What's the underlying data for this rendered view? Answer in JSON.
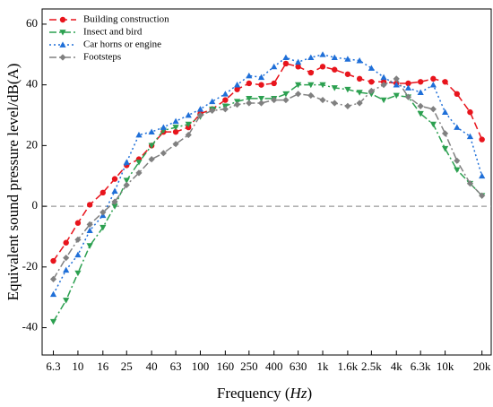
{
  "chart_data": {
    "type": "line",
    "xscale": "log",
    "grid": false,
    "legend": "upper left",
    "xlabel_parts": [
      "Frequency  (",
      "Hz",
      ")"
    ],
    "ylabel": "Equivalent sound pressure level/dB(A)",
    "hline": 0,
    "x": [
      6.3,
      8,
      10,
      12.5,
      16,
      20,
      25,
      31.5,
      40,
      50,
      63,
      80,
      100,
      125,
      160,
      200,
      250,
      315,
      400,
      500,
      630,
      800,
      1000,
      1250,
      1600,
      2000,
      2500,
      3150,
      4000,
      5000,
      6300,
      8000,
      10000,
      12500,
      16000,
      20000
    ],
    "xlim": [
      5.1,
      23800
    ],
    "xticks": [
      6.3,
      10,
      16,
      25,
      40,
      63,
      100,
      160,
      250,
      400,
      630,
      {
        "value": 1000,
        "label": "1k"
      },
      {
        "value": 1600,
        "label": "1.6k"
      },
      {
        "value": 2500,
        "label": "2.5k"
      },
      {
        "value": 4000,
        "label": "4k"
      },
      {
        "value": 6300,
        "label": "6.3k"
      },
      {
        "value": 10000,
        "label": "10k"
      },
      {
        "value": 20000,
        "label": "20k"
      }
    ],
    "ylim": [
      -49,
      65
    ],
    "yticks": [
      -40,
      -20,
      0,
      20,
      40,
      60
    ],
    "series": [
      {
        "name": "Building construction",
        "color": "#e8141c",
        "marker": "circle",
        "linestyle": "dashed",
        "values": [
          -18,
          -12,
          -5.5,
          0.5,
          4.5,
          9,
          13.5,
          15.5,
          20,
          24.5,
          24.5,
          26,
          30.5,
          32,
          35,
          38.5,
          40.5,
          40,
          40.5,
          47,
          46,
          44,
          46,
          45,
          43.5,
          42,
          41,
          41,
          40.5,
          40.5,
          41,
          42,
          41,
          37,
          31,
          22
        ]
      },
      {
        "name": "Insect and bird",
        "color": "#2ca050",
        "marker": "triangle-down",
        "linestyle": "dashdot",
        "values": [
          -38,
          -31,
          -22,
          -13,
          -7,
          0,
          8.5,
          14.5,
          20,
          25,
          26,
          27,
          29.5,
          32,
          33,
          34.5,
          35.5,
          35.5,
          35.5,
          37,
          40,
          40,
          40,
          39,
          38.5,
          37.5,
          37,
          35,
          36.5,
          36,
          30.5,
          27,
          19,
          12,
          7.5,
          3.5
        ]
      },
      {
        "name": "Car horns or engine",
        "color": "#1f6fd8",
        "marker": "triangle-up",
        "linestyle": "dotted",
        "values": [
          -29,
          -21,
          -16,
          -8,
          -3,
          5,
          14.5,
          23.5,
          24.5,
          26,
          28,
          30,
          32,
          34.5,
          37,
          40,
          43,
          42.5,
          46,
          49,
          47.5,
          49,
          50,
          49,
          48.5,
          48,
          45.5,
          42.5,
          40,
          39,
          37.5,
          40,
          31,
          26,
          23,
          10
        ]
      },
      {
        "name": "Footsteps",
        "color": "#808080",
        "marker": "diamond",
        "linestyle": "dashdot",
        "values": [
          -24,
          -17,
          -11,
          -6,
          -2,
          1.5,
          7,
          11,
          15.5,
          17.5,
          20.5,
          23.5,
          30,
          31.5,
          32,
          33.5,
          34,
          34,
          35,
          35,
          37,
          36.5,
          35,
          34,
          33,
          34,
          38,
          40,
          42,
          36,
          33,
          32,
          24,
          15,
          7.5,
          3.5
        ]
      }
    ]
  }
}
